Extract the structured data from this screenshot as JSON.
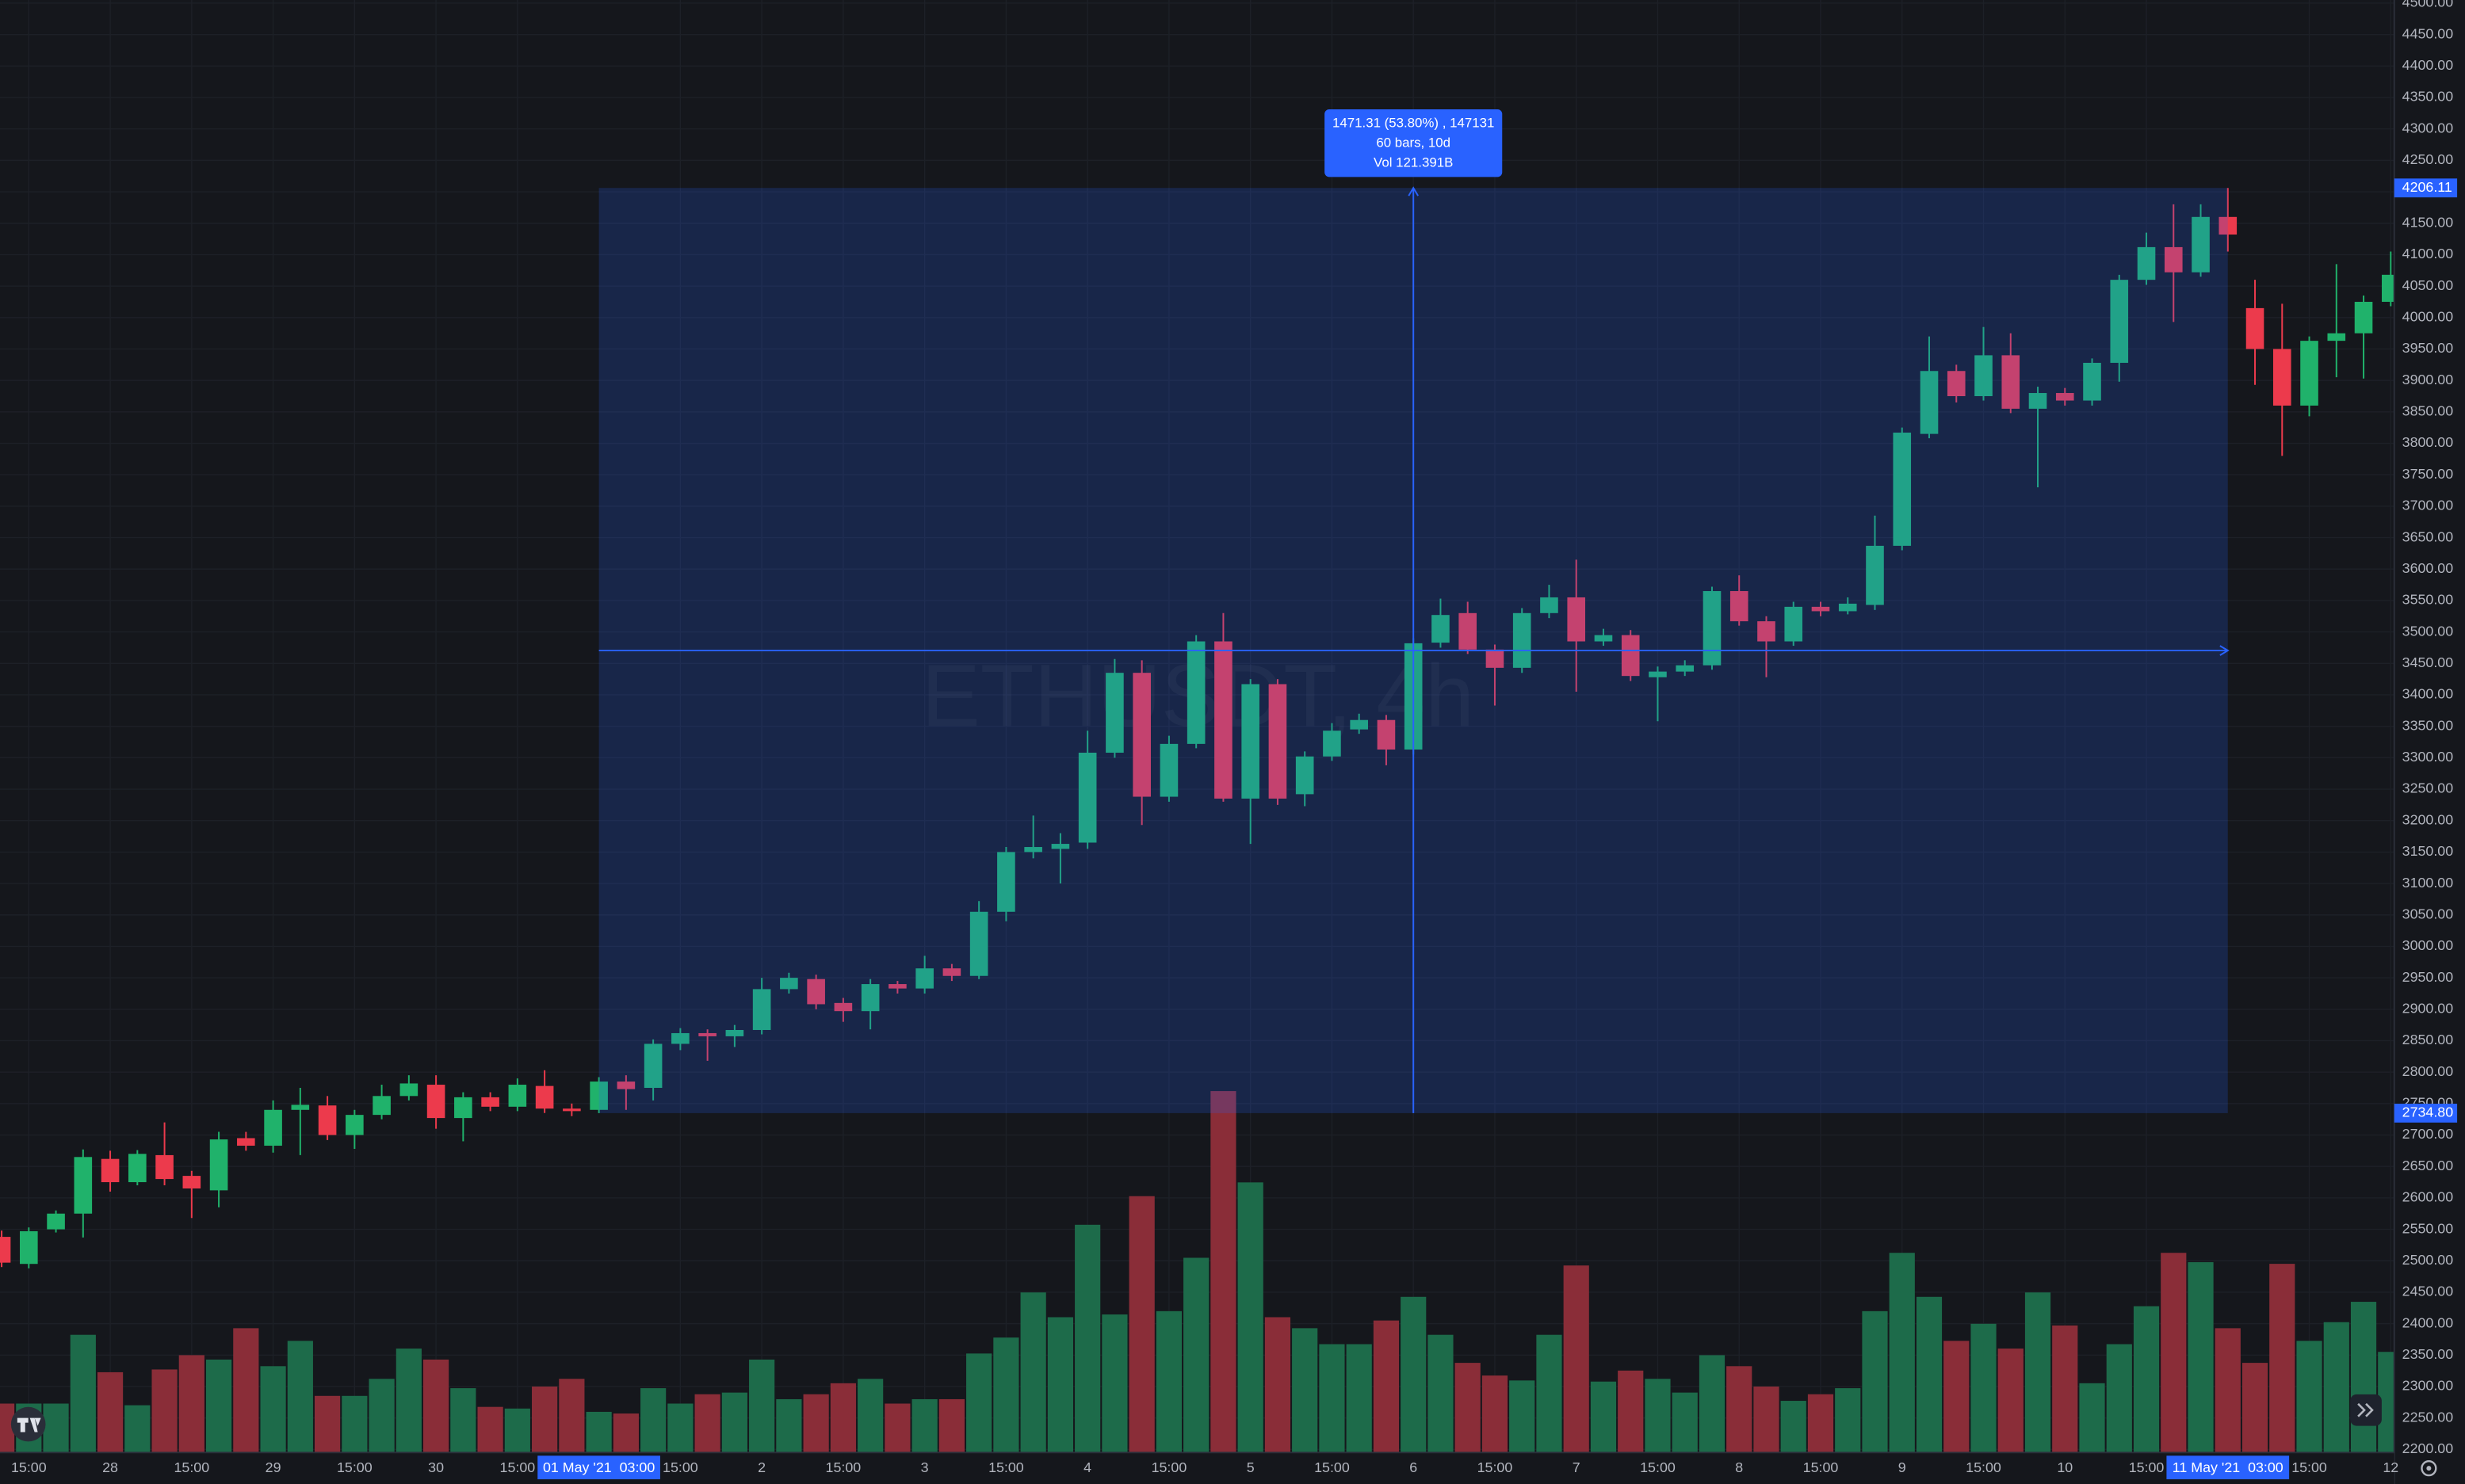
{
  "chart_data": {
    "type": "candlestick",
    "watermark": "ETHUSDT, 4h",
    "up_color": "#20b26b",
    "down_color": "#ec3a4c",
    "volume_up_color": "#1d6b4a",
    "volume_down_color": "#8a2d38",
    "grid": true,
    "xlim": [
      -0.06,
      88.13
    ],
    "ylim": [
      2195,
      4505
    ],
    "vlim": [
      0,
      7
    ],
    "open": [
      2538,
      2495,
      2550,
      2575,
      2662,
      2625,
      2668,
      2635,
      2612,
      2695,
      2683,
      2740,
      2747,
      2700,
      2732,
      2762,
      2780,
      2727,
      2760,
      2745,
      2778,
      2742,
      2740,
      2785,
      2775,
      2845,
      2862,
      2857,
      2867,
      2932,
      2948,
      2910,
      2897,
      2940,
      2933,
      2965,
      2953,
      3055,
      3150,
      3155,
      3165,
      3308,
      3435,
      3238,
      3322,
      3485,
      3235,
      3417,
      3242,
      3302,
      3345,
      3360,
      3313,
      3483,
      3530,
      3472,
      3443,
      3530,
      3555,
      3485,
      3495,
      3428,
      3437,
      3447,
      3565,
      3517,
      3485,
      3540,
      3533,
      3543,
      3637,
      3815,
      3915,
      3875,
      3940,
      3855,
      3880,
      3868,
      3928,
      4060,
      4112,
      4072,
      4160,
      4015,
      3950,
      3860,
      3963,
      3975,
      4025
    ],
    "high": [
      2548,
      2553,
      2580,
      2677,
      2675,
      2676,
      2720,
      2643,
      2705,
      2705,
      2755,
      2775,
      2762,
      2740,
      2780,
      2795,
      2795,
      2768,
      2768,
      2790,
      2803,
      2750,
      2792,
      2795,
      2852,
      2870,
      2868,
      2875,
      2950,
      2958,
      2955,
      2918,
      2948,
      2945,
      2985,
      2972,
      3072,
      3158,
      3208,
      3180,
      3343,
      3457,
      3455,
      3335,
      3495,
      3530,
      3425,
      3425,
      3310,
      3355,
      3370,
      3368,
      3490,
      3553,
      3548,
      3480,
      3538,
      3575,
      3615,
      3505,
      3503,
      3445,
      3455,
      3572,
      3590,
      3525,
      3548,
      3548,
      3555,
      3685,
      3825,
      3970,
      3925,
      3985,
      3975,
      3890,
      3888,
      3935,
      4068,
      4135,
      4180,
      4180,
      4206.11,
      4060,
      4022,
      3970,
      4085,
      4035,
      4105
    ],
    "low": [
      2490,
      2488,
      2545,
      2537,
      2610,
      2620,
      2620,
      2568,
      2585,
      2675,
      2672,
      2668,
      2692,
      2678,
      2725,
      2755,
      2710,
      2690,
      2738,
      2738,
      2735,
      2730,
      2734.8,
      2740,
      2755,
      2835,
      2818,
      2840,
      2860,
      2925,
      2900,
      2880,
      2868,
      2925,
      2925,
      2945,
      2948,
      3040,
      3140,
      3100,
      3155,
      3300,
      3193,
      3230,
      3315,
      3230,
      3163,
      3225,
      3223,
      3295,
      3338,
      3288,
      3305,
      3475,
      3465,
      3383,
      3435,
      3522,
      3405,
      3478,
      3422,
      3358,
      3430,
      3440,
      3510,
      3428,
      3478,
      3525,
      3528,
      3535,
      3630,
      3808,
      3865,
      3868,
      3848,
      3730,
      3860,
      3860,
      3898,
      4052,
      3993,
      4065,
      4105,
      3893,
      3780,
      3843,
      3905,
      3903,
      4018
    ],
    "close": [
      2497,
      2547,
      2575,
      2665,
      2625,
      2670,
      2630,
      2615,
      2693,
      2683,
      2740,
      2748,
      2700,
      2732,
      2762,
      2782,
      2727,
      2760,
      2745,
      2780,
      2742,
      2738,
      2785,
      2773,
      2845,
      2862,
      2857,
      2867,
      2932,
      2950,
      2908,
      2897,
      2940,
      2933,
      2965,
      2953,
      3055,
      3150,
      3158,
      3163,
      3308,
      3435,
      3238,
      3322,
      3485,
      3235,
      3417,
      3235,
      3302,
      3343,
      3360,
      3313,
      3482,
      3527,
      3472,
      3443,
      3530,
      3555,
      3485,
      3495,
      3430,
      3437,
      3447,
      3565,
      3517,
      3485,
      3540,
      3533,
      3545,
      3637,
      3817,
      3915,
      3875,
      3940,
      3855,
      3880,
      3868,
      3928,
      4060,
      4112,
      4072,
      4160,
      4132,
      3950,
      3860,
      3963,
      3975,
      4025,
      4068
    ],
    "volume": [
      0.89,
      0.89,
      0.89,
      2.14,
      1.46,
      0.86,
      1.51,
      1.77,
      1.69,
      2.26,
      1.57,
      2.03,
      1.03,
      1.03,
      1.34,
      1.89,
      1.69,
      1.17,
      0.83,
      0.8,
      1.2,
      1.34,
      0.74,
      0.71,
      1.17,
      0.89,
      1.06,
      1.09,
      1.69,
      0.97,
      1.06,
      1.26,
      1.34,
      0.89,
      0.97,
      0.97,
      1.8,
      2.09,
      2.91,
      2.46,
      4.14,
      2.51,
      4.66,
      2.57,
      3.54,
      6.57,
      4.91,
      2.46,
      2.26,
      1.97,
      1.97,
      2.4,
      2.83,
      2.14,
      1.63,
      1.4,
      1.31,
      2.14,
      3.4,
      1.29,
      1.49,
      1.34,
      1.09,
      1.77,
      1.57,
      1.2,
      0.94,
      1.06,
      1.17,
      2.57,
      3.63,
      2.83,
      2.03,
      2.34,
      1.89,
      2.91,
      2.31,
      1.26,
      1.97,
      2.66,
      3.63,
      3.46,
      2.26,
      1.63,
      3.43,
      2.03,
      2.37,
      2.74,
      1.83
    ],
    "xticks": [
      {
        "value": 1,
        "label": "15:00"
      },
      {
        "value": 4,
        "label": "28"
      },
      {
        "value": 7,
        "label": "15:00"
      },
      {
        "value": 10,
        "label": "29"
      },
      {
        "value": 13,
        "label": "15:00"
      },
      {
        "value": 16,
        "label": "30"
      },
      {
        "value": 19,
        "label": "15:00"
      },
      {
        "value": 25,
        "label": "15:00"
      },
      {
        "value": 28,
        "label": "2"
      },
      {
        "value": 31,
        "label": "15:00"
      },
      {
        "value": 34,
        "label": "3"
      },
      {
        "value": 37,
        "label": "15:00"
      },
      {
        "value": 40,
        "label": "4"
      },
      {
        "value": 43,
        "label": "15:00"
      },
      {
        "value": 46,
        "label": "5"
      },
      {
        "value": 49,
        "label": "15:00"
      },
      {
        "value": 52,
        "label": "6"
      },
      {
        "value": 55,
        "label": "15:00"
      },
      {
        "value": 58,
        "label": "7"
      },
      {
        "value": 61,
        "label": "15:00"
      },
      {
        "value": 64,
        "label": "8"
      },
      {
        "value": 67,
        "label": "15:00"
      },
      {
        "value": 70,
        "label": "9"
      },
      {
        "value": 73,
        "label": "15:00"
      },
      {
        "value": 76,
        "label": "10"
      },
      {
        "value": 79,
        "label": "15:00"
      },
      {
        "value": 85,
        "label": "15:00"
      },
      {
        "value": 88,
        "label": "12"
      }
    ],
    "yticks": [
      {
        "value": 4500,
        "label": "4500.00"
      },
      {
        "value": 4450,
        "label": "4450.00"
      },
      {
        "value": 4400,
        "label": "4400.00"
      },
      {
        "value": 4350,
        "label": "4350.00"
      },
      {
        "value": 4300,
        "label": "4300.00"
      },
      {
        "value": 4250,
        "label": "4250.00"
      },
      {
        "value": 4200,
        "label": "4200.00"
      },
      {
        "value": 4150,
        "label": "4150.00"
      },
      {
        "value": 4100,
        "label": "4100.00"
      },
      {
        "value": 4050,
        "label": "4050.00"
      },
      {
        "value": 4000,
        "label": "4000.00"
      },
      {
        "value": 3950,
        "label": "3950.00"
      },
      {
        "value": 3900,
        "label": "3900.00"
      },
      {
        "value": 3850,
        "label": "3850.00"
      },
      {
        "value": 3800,
        "label": "3800.00"
      },
      {
        "value": 3750,
        "label": "3750.00"
      },
      {
        "value": 3700,
        "label": "3700.00"
      },
      {
        "value": 3650,
        "label": "3650.00"
      },
      {
        "value": 3600,
        "label": "3600.00"
      },
      {
        "value": 3550,
        "label": "3550.00"
      },
      {
        "value": 3500,
        "label": "3500.00"
      },
      {
        "value": 3450,
        "label": "3450.00"
      },
      {
        "value": 3400,
        "label": "3400.00"
      },
      {
        "value": 3350,
        "label": "3350.00"
      },
      {
        "value": 3300,
        "label": "3300.00"
      },
      {
        "value": 3250,
        "label": "3250.00"
      },
      {
        "value": 3200,
        "label": "3200.00"
      },
      {
        "value": 3150,
        "label": "3150.00"
      },
      {
        "value": 3100,
        "label": "3100.00"
      },
      {
        "value": 3050,
        "label": "3050.00"
      },
      {
        "value": 3000,
        "label": "3000.00"
      },
      {
        "value": 2950,
        "label": "2950.00"
      },
      {
        "value": 2900,
        "label": "2900.00"
      },
      {
        "value": 2850,
        "label": "2850.00"
      },
      {
        "value": 2800,
        "label": "2800.00"
      },
      {
        "value": 2750,
        "label": "2750.00"
      },
      {
        "value": 2700,
        "label": "2700.00"
      },
      {
        "value": 2650,
        "label": "2650.00"
      },
      {
        "value": 2600,
        "label": "2600.00"
      },
      {
        "value": 2550,
        "label": "2550.00"
      },
      {
        "value": 2500,
        "label": "2500.00"
      },
      {
        "value": 2450,
        "label": "2450.00"
      },
      {
        "value": 2400,
        "label": "2400.00"
      },
      {
        "value": 2350,
        "label": "2350.00"
      },
      {
        "value": 2300,
        "label": "2300.00"
      },
      {
        "value": 2250,
        "label": "2250.00"
      },
      {
        "value": 2200,
        "label": "2200.00"
      }
    ],
    "range": {
      "bar_from": 22,
      "bar_to": 82,
      "price_from": {
        "value": 2734.8,
        "label": "2734.80"
      },
      "price_to": {
        "value": 4206.11,
        "label": "4206.11"
      },
      "date_from": "01 May '21  03:00",
      "date_to": "11 May '21  03:00",
      "color": "#2962ff",
      "info": [
        "1471.31 (53.80%) , 147131",
        "60 bars, 10d",
        "Vol 121.391B"
      ]
    }
  }
}
